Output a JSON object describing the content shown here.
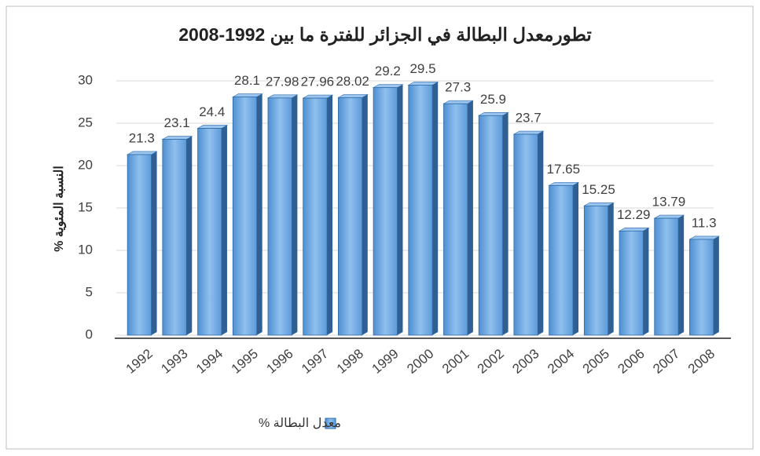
{
  "chart_data": {
    "type": "bar3d",
    "title": "تطورمعدل البطالة في الجزائر للفترة ما بين 1992-2008",
    "y_label": "النسبة المئوية %",
    "categories": [
      "1992",
      "1993",
      "1994",
      "1995",
      "1996",
      "1997",
      "1998",
      "1999",
      "2000",
      "2001",
      "2002",
      "2003",
      "2004",
      "2005",
      "2006",
      "2007",
      "2008"
    ],
    "series": [
      {
        "name": "معدل البطالة %",
        "color": "#5b9bd5",
        "values": [
          21.3,
          23.1,
          24.4,
          28.1,
          27.98,
          27.96,
          28.02,
          29.2,
          29.5,
          27.3,
          25.9,
          23.7,
          17.65,
          15.25,
          12.29,
          13.79,
          11.3
        ]
      }
    ],
    "ylim": [
      0,
      30
    ],
    "yticks": [
      0,
      5,
      10,
      15,
      20,
      25,
      30
    ],
    "grid": true,
    "legend": "bottom"
  }
}
